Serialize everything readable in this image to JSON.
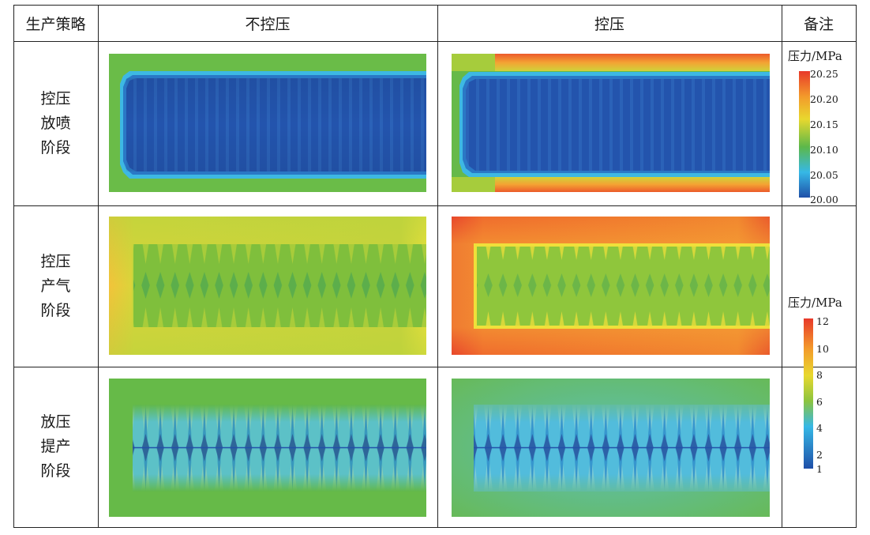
{
  "header": {
    "col_strategy": "生产策略",
    "col_no_control": "不控压",
    "col_control": "控压",
    "col_note": "备注"
  },
  "rows": [
    {
      "label_lines": [
        "控压",
        "放喷",
        "阶段"
      ]
    },
    {
      "label_lines": [
        "控压",
        "产气",
        "阶段"
      ]
    },
    {
      "label_lines": [
        "放压",
        "提产",
        "阶段"
      ]
    }
  ],
  "legend_top": {
    "title": "压力/MPa",
    "ticks": [
      "20.25",
      "20.20",
      "20.15",
      "20.10",
      "20.05",
      "20.00"
    ]
  },
  "legend_bottom": {
    "title": "压力/MPa",
    "ticks": [
      "12",
      "10",
      "8",
      "6",
      "4",
      "2",
      "1"
    ]
  },
  "colors": {
    "deep_blue": "#1f4fa8",
    "light_blue": "#36b8e6",
    "green": "#5cb84a",
    "yellow": "#e8d82e",
    "orange": "#f39a2b",
    "red": "#e8392a"
  }
}
